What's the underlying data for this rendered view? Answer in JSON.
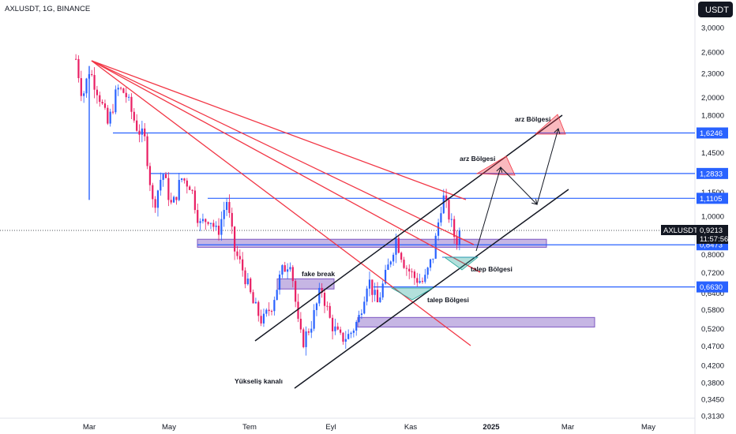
{
  "header": {
    "title": "AXLUSDT, 1G, BINANCE",
    "currency": "USDT"
  },
  "chart_data": {
    "type": "candlestick",
    "symbol": "AXLUSDT",
    "interval": "1G",
    "exchange": "BINANCE",
    "y_scale": "log",
    "ylim": [
      0.3,
      3.2
    ],
    "y_ticks": [
      "3,0000",
      "2,6000",
      "2,3000",
      "2,0000",
      "1,8000",
      "1,4500",
      "1,1500",
      "1,0000",
      "0,8000",
      "0,7200",
      "0,6400",
      "0,5800",
      "0,5200",
      "0,4700",
      "0,4200",
      "0,3800",
      "0,3450",
      "0,3130"
    ],
    "x_ticks": [
      "Mar",
      "May",
      "Tem",
      "Eyl",
      "Kas",
      "2025",
      "Mar",
      "May"
    ],
    "price_levels": [
      {
        "label": "1,6246",
        "value": 1.6246
      },
      {
        "label": "1,2833",
        "value": 1.2833
      },
      {
        "label": "1,1105",
        "value": 1.1105
      },
      {
        "label": "0,8473",
        "value": 0.8473
      },
      {
        "label": "0,6630",
        "value": 0.663
      }
    ],
    "last_price": {
      "symbol": "AXLUSDT",
      "value": 0.9213,
      "label": "0,9213",
      "countdown": "11:57:56"
    },
    "annotations": {
      "fake_break": "fake break",
      "yukselis_kanali": "Yükseliş kanalı",
      "talep_1": "talep Bölgesi",
      "talep_2": "talep Bölgesi",
      "arz_1": "arz Bölgesi",
      "arz_2": "arz Bölgesi"
    },
    "price_path": [
      {
        "date": "2024-02-20",
        "price": 2.5
      },
      {
        "date": "2024-02-25",
        "price": 2.0
      },
      {
        "date": "2024-03-01",
        "price": 2.35
      },
      {
        "date": "2024-03-08",
        "price": 2.05
      },
      {
        "date": "2024-03-15",
        "price": 1.7
      },
      {
        "date": "2024-03-22",
        "price": 2.1
      },
      {
        "date": "2024-03-28",
        "price": 2.05
      },
      {
        "date": "2024-04-05",
        "price": 1.7
      },
      {
        "date": "2024-04-12",
        "price": 1.55
      },
      {
        "date": "2024-04-18",
        "price": 1.05
      },
      {
        "date": "2024-04-25",
        "price": 1.3
      },
      {
        "date": "2024-05-02",
        "price": 1.05
      },
      {
        "date": "2024-05-09",
        "price": 1.25
      },
      {
        "date": "2024-05-16",
        "price": 1.2
      },
      {
        "date": "2024-05-23",
        "price": 0.95
      },
      {
        "date": "2024-05-30",
        "price": 1.0
      },
      {
        "date": "2024-06-05",
        "price": 0.9
      },
      {
        "date": "2024-06-12",
        "price": 1.1
      },
      {
        "date": "2024-06-18",
        "price": 0.82
      },
      {
        "date": "2024-06-25",
        "price": 0.72
      },
      {
        "date": "2024-07-02",
        "price": 0.6
      },
      {
        "date": "2024-07-09",
        "price": 0.54
      },
      {
        "date": "2024-07-16",
        "price": 0.6
      },
      {
        "date": "2024-07-23",
        "price": 0.72
      },
      {
        "date": "2024-07-30",
        "price": 0.78
      },
      {
        "date": "2024-08-05",
        "price": 0.52
      },
      {
        "date": "2024-08-08",
        "price": 0.48
      },
      {
        "date": "2024-08-15",
        "price": 0.54
      },
      {
        "date": "2024-08-22",
        "price": 0.66
      },
      {
        "date": "2024-08-29",
        "price": 0.54
      },
      {
        "date": "2024-09-05",
        "price": 0.49
      },
      {
        "date": "2024-09-12",
        "price": 0.5
      },
      {
        "date": "2024-09-19",
        "price": 0.55
      },
      {
        "date": "2024-09-26",
        "price": 0.7
      },
      {
        "date": "2024-10-03",
        "price": 0.6
      },
      {
        "date": "2024-10-10",
        "price": 0.72
      },
      {
        "date": "2024-10-17",
        "price": 0.88
      },
      {
        "date": "2024-10-24",
        "price": 0.75
      },
      {
        "date": "2024-10-31",
        "price": 0.7
      },
      {
        "date": "2024-11-07",
        "price": 0.68
      },
      {
        "date": "2024-11-14",
        "price": 0.8
      },
      {
        "date": "2024-11-21",
        "price": 1.13
      },
      {
        "date": "2024-11-26",
        "price": 1.0
      },
      {
        "date": "2024-12-01",
        "price": 0.86
      },
      {
        "date": "2024-12-04",
        "price": 0.92
      }
    ]
  }
}
